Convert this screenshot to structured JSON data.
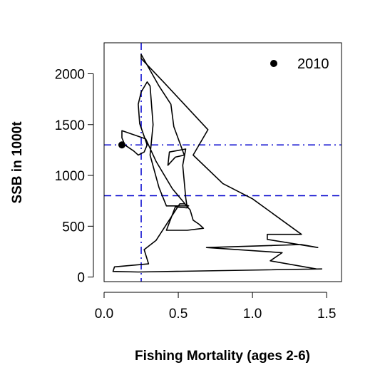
{
  "chart_data": {
    "type": "line",
    "xlabel": "Fishing Mortality (ages 2-6)",
    "ylabel": "SSB in 1000t",
    "xlim": [
      0,
      1.6
    ],
    "ylim": [
      -45,
      2305
    ],
    "x_ticks": [
      "0.0",
      "0.5",
      "1.0",
      "1.5"
    ],
    "y_ticks": [
      "0",
      "500",
      "1000",
      "1500",
      "2000"
    ],
    "grid": false,
    "series": [
      {
        "points": [
          [
            1.47,
            80
          ],
          [
            0.23,
            50
          ],
          [
            0.06,
            55
          ],
          [
            0.07,
            100
          ],
          [
            0.3,
            130
          ],
          [
            0.27,
            270
          ],
          [
            0.35,
            360
          ],
          [
            0.51,
            720
          ],
          [
            0.54,
            720
          ],
          [
            0.57,
            700
          ],
          [
            0.42,
            700
          ],
          [
            0.37,
            880
          ],
          [
            0.31,
            1200
          ],
          [
            0.33,
            1500
          ],
          [
            0.31,
            1880
          ],
          [
            0.29,
            1920
          ],
          [
            0.25,
            1820
          ],
          [
            0.23,
            1700
          ],
          [
            0.24,
            1510
          ],
          [
            0.29,
            1300
          ],
          [
            0.27,
            1230
          ],
          [
            0.23,
            1200
          ],
          [
            0.2,
            1240
          ],
          [
            0.14,
            1300
          ],
          [
            0.12,
            1370
          ],
          [
            0.12,
            1440
          ],
          [
            0.2,
            1400
          ],
          [
            0.28,
            1360
          ],
          [
            0.35,
            1140
          ],
          [
            0.46,
            870
          ],
          [
            0.58,
            660
          ],
          [
            0.6,
            560
          ],
          [
            0.64,
            520
          ],
          [
            0.67,
            480
          ],
          [
            0.56,
            460
          ],
          [
            0.42,
            460
          ],
          [
            0.48,
            690
          ],
          [
            0.56,
            680
          ],
          [
            0.55,
            780
          ],
          [
            0.53,
            1100
          ],
          [
            0.55,
            1260
          ],
          [
            0.44,
            1230
          ],
          [
            0.43,
            1100
          ],
          [
            0.48,
            1180
          ],
          [
            0.54,
            1200
          ],
          [
            0.47,
            1480
          ],
          [
            0.45,
            1700
          ],
          [
            0.37,
            1880
          ],
          [
            0.25,
            2190
          ],
          [
            0.25,
            2150
          ],
          [
            0.4,
            1920
          ],
          [
            0.54,
            1700
          ],
          [
            0.7,
            1450
          ],
          [
            0.6,
            1200
          ],
          [
            0.8,
            920
          ],
          [
            1.0,
            770
          ],
          [
            1.33,
            420
          ],
          [
            1.1,
            420
          ],
          [
            1.1,
            370
          ],
          [
            1.44,
            290
          ],
          [
            1.33,
            320
          ],
          [
            0.69,
            290
          ],
          [
            1.2,
            240
          ],
          [
            1.12,
            160
          ],
          [
            1.43,
            80
          ]
        ]
      }
    ],
    "reference_lines": [
      {
        "orientation": "vertical",
        "value": 0.25,
        "style": "dotdash",
        "color": "#0000cd"
      },
      {
        "orientation": "horizontal",
        "value": 1300,
        "style": "dotdash",
        "color": "#0000cd"
      },
      {
        "orientation": "horizontal",
        "value": 800,
        "style": "dashed",
        "color": "#0000cd"
      }
    ],
    "highlight_point": {
      "label": "2010",
      "x": 0.12,
      "y": 1300
    },
    "legend": {
      "position": "top-right",
      "entries": [
        {
          "label": "2010",
          "marker": "filled-circle"
        }
      ]
    }
  }
}
